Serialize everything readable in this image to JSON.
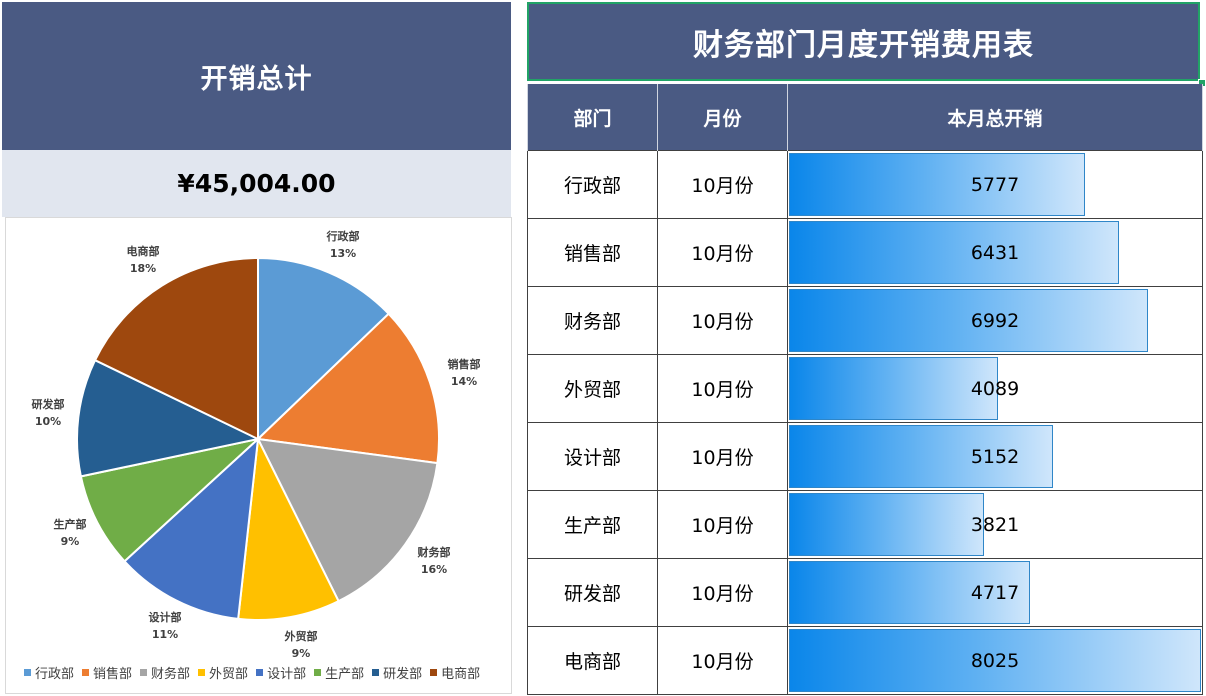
{
  "summary": {
    "title": "开销总计",
    "total": "¥45,004.00"
  },
  "table": {
    "title": "财务部门月度开销费用表",
    "headers": [
      "部门",
      "月份",
      "本月总开销"
    ],
    "rows": [
      {
        "dept": "行政部",
        "month": "10月份",
        "value": "5777"
      },
      {
        "dept": "销售部",
        "month": "10月份",
        "value": "6431"
      },
      {
        "dept": "财务部",
        "month": "10月份",
        "value": "6992"
      },
      {
        "dept": "外贸部",
        "month": "10月份",
        "value": "4089"
      },
      {
        "dept": "设计部",
        "month": "10月份",
        "value": "5152"
      },
      {
        "dept": "生产部",
        "month": "10月份",
        "value": "3821"
      },
      {
        "dept": "研发部",
        "month": "10月份",
        "value": "4717"
      },
      {
        "dept": "电商部",
        "month": "10月份",
        "value": "8025"
      }
    ],
    "bar_max": 8025,
    "bar_colors": {
      "start": "#0a86ea",
      "end": "#cfe6fb",
      "border": "#2f86c8"
    }
  },
  "colors": {
    "header_bg": "#4a5a83",
    "total_bg": "#e1e6ef",
    "selection": "#21a366"
  },
  "chart_data": {
    "type": "pie",
    "title": "",
    "categories": [
      "行政部",
      "销售部",
      "财务部",
      "外贸部",
      "设计部",
      "生产部",
      "研发部",
      "电商部"
    ],
    "values": [
      5777,
      6431,
      6992,
      4089,
      5152,
      3821,
      4717,
      8025
    ],
    "percent_labels": [
      "13%",
      "14%",
      "16%",
      "9%",
      "11%",
      "9%",
      "10%",
      "18%"
    ],
    "colors": [
      "#5b9bd5",
      "#ed7d31",
      "#a5a5a5",
      "#ffc000",
      "#4472c4",
      "#70ad47",
      "#255e91",
      "#9e480e"
    ],
    "start_angle": "12 o'clock",
    "direction": "clockwise",
    "legend_position": "bottom",
    "data_labels": "category name + percentage"
  }
}
